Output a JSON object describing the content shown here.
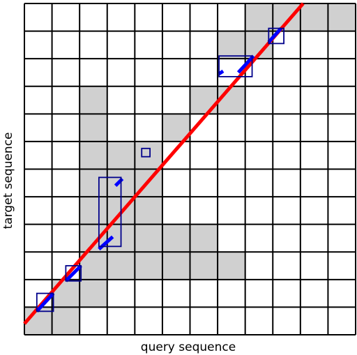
{
  "labels": {
    "x": "query sequence",
    "y": "target sequence"
  },
  "grid": {
    "columns": 12,
    "rows": 12
  },
  "colors": {
    "background": "#ffffff",
    "grid_line": "#000000",
    "shaded_cell": "#d0d0d0",
    "diagonal": "#ff0000",
    "match_segment": "#0000ff",
    "box_outline": "#00008b"
  },
  "shaded_cells": [
    [
      0,
      0
    ],
    [
      1,
      0
    ],
    [
      1,
      1
    ],
    [
      2,
      1
    ],
    [
      2,
      2
    ],
    [
      3,
      2
    ],
    [
      4,
      2
    ],
    [
      5,
      2
    ],
    [
      6,
      2
    ],
    [
      7,
      2
    ],
    [
      2,
      3
    ],
    [
      3,
      3
    ],
    [
      4,
      3
    ],
    [
      5,
      3
    ],
    [
      6,
      3
    ],
    [
      2,
      4
    ],
    [
      3,
      4
    ],
    [
      4,
      4
    ],
    [
      2,
      5
    ],
    [
      3,
      5
    ],
    [
      4,
      5
    ],
    [
      2,
      6
    ],
    [
      3,
      6
    ],
    [
      4,
      6
    ],
    [
      2,
      7
    ],
    [
      5,
      7
    ],
    [
      2,
      8
    ],
    [
      6,
      8
    ],
    [
      7,
      8
    ],
    [
      8,
      10
    ],
    [
      7,
      10
    ],
    [
      8,
      11
    ],
    [
      9,
      11
    ],
    [
      10,
      11
    ],
    [
      11,
      11
    ]
  ],
  "diagonal_line": {
    "from": [
      0,
      0.4
    ],
    "to": [
      10.1,
      12
    ]
  },
  "match_segments": [
    {
      "from": [
        0.45,
        0.85
      ],
      "to": [
        1.05,
        1.5
      ]
    },
    {
      "from": [
        1.5,
        1.95
      ],
      "to": [
        2.05,
        2.5
      ]
    },
    {
      "from": [
        2.7,
        3.1
      ],
      "to": [
        3.2,
        3.55
      ]
    },
    {
      "from": [
        3.3,
        5.4
      ],
      "to": [
        3.55,
        5.65
      ]
    },
    {
      "from": [
        7.05,
        9.45
      ],
      "to": [
        7.2,
        9.55
      ]
    },
    {
      "from": [
        7.75,
        9.5
      ],
      "to": [
        8.3,
        10.1
      ]
    },
    {
      "from": [
        8.85,
        10.6
      ],
      "to": [
        9.3,
        11.1
      ]
    }
  ],
  "match_boxes": [
    {
      "from": [
        0.45,
        0.85
      ],
      "to": [
        1.05,
        1.5
      ]
    },
    {
      "from": [
        1.5,
        1.95
      ],
      "to": [
        2.05,
        2.5
      ]
    },
    {
      "from": [
        2.7,
        3.2
      ],
      "to": [
        3.5,
        5.7
      ]
    },
    {
      "from": [
        4.25,
        6.45
      ],
      "to": [
        4.55,
        6.75
      ]
    },
    {
      "from": [
        7.05,
        9.35
      ],
      "to": [
        8.25,
        10.1
      ]
    },
    {
      "from": [
        8.85,
        10.55
      ],
      "to": [
        9.4,
        11.1
      ]
    }
  ]
}
